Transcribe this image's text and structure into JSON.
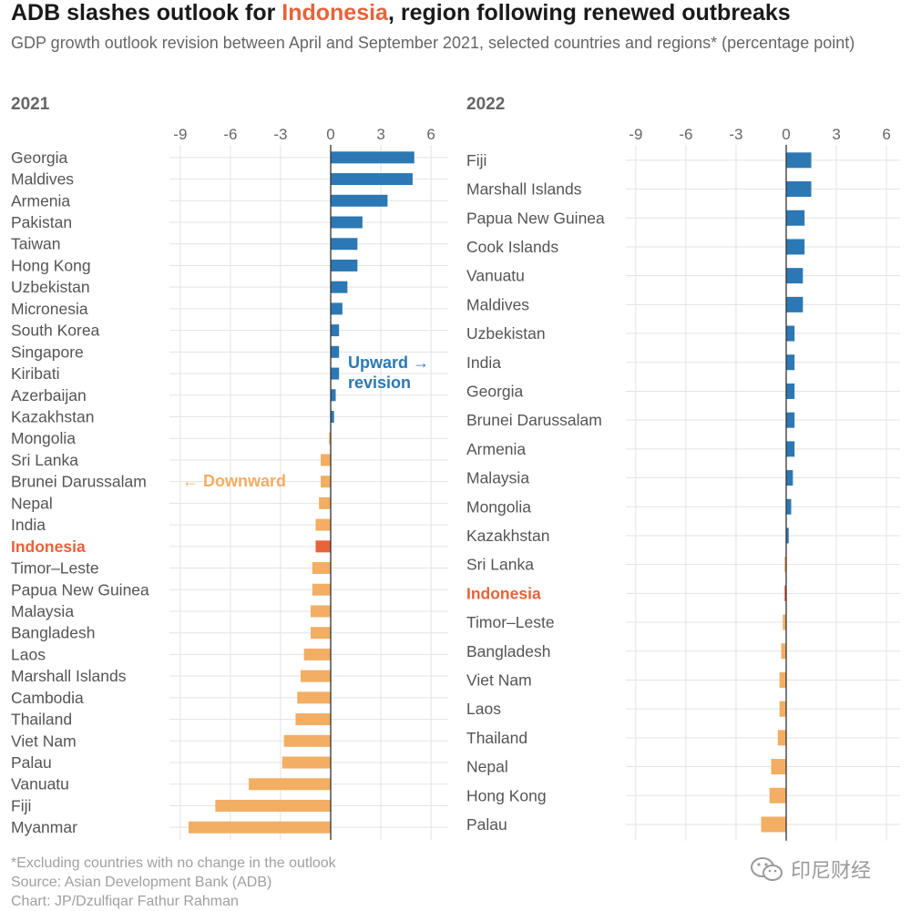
{
  "header": {
    "title_before": "ADB slashes outlook for ",
    "title_highlight": "Indonesia",
    "title_after": ", region following renewed outbreaks",
    "subtitle": "GDP growth outlook revision between April and September 2021, selected countries and regions* (percentage point)"
  },
  "footer": {
    "note": "*Excluding countries with no change in the outlook",
    "source": "Source: Asian Development Bank (ADB)",
    "credit": "Chart: JP/Dzulfiqar Fathur Rahman"
  },
  "watermark": {
    "text": "印尼财经",
    "icon": "wechat-icon"
  },
  "colors": {
    "upward": "#2b78b4",
    "downward": "#f2ae63",
    "highlight": "#e8623a"
  },
  "chart_data": [
    {
      "type": "bar",
      "orientation": "horizontal",
      "title": "2021",
      "xlim": [
        -10.5,
        6.5
      ],
      "ticks": [
        -9,
        -6,
        -3,
        0,
        3,
        6
      ],
      "highlight_category": "Indonesia",
      "annotations": {
        "upward": "Upward →|revision",
        "downward": "← Downward"
      },
      "categories": [
        "Georgia",
        "Maldives",
        "Armenia",
        "Pakistan",
        "Taiwan",
        "Hong Kong",
        "Uzbekistan",
        "Micronesia",
        "South Korea",
        "Singapore",
        "Kiribati",
        "Azerbaijan",
        "Kazakhstan",
        "Mongolia",
        "Sri Lanka",
        "Brunei Darussalam",
        "Nepal",
        "India",
        "Indonesia",
        "Timor–Leste",
        "Papua New Guinea",
        "Malaysia",
        "Bangladesh",
        "Laos",
        "Marshall Islands",
        "Cambodia",
        "Thailand",
        "Viet Nam",
        "Palau",
        "Vanuatu",
        "Fiji",
        "Myanmar"
      ],
      "values": [
        5.0,
        4.9,
        3.4,
        1.9,
        1.6,
        1.6,
        1.0,
        0.7,
        0.5,
        0.5,
        0.5,
        0.3,
        0.2,
        -0.1,
        -0.6,
        -0.6,
        -0.7,
        -0.9,
        -0.9,
        -1.1,
        -1.1,
        -1.2,
        -1.2,
        -1.6,
        -1.8,
        -2.0,
        -2.1,
        -2.8,
        -2.9,
        -4.9,
        -6.9,
        -8.5
      ]
    },
    {
      "type": "bar",
      "orientation": "horizontal",
      "title": "2022",
      "xlim": [
        -10.5,
        6.5
      ],
      "ticks": [
        -9,
        -6,
        -3,
        0,
        3,
        6
      ],
      "highlight_category": "Indonesia",
      "categories": [
        "Fiji",
        "Marshall Islands",
        "Papua New Guinea",
        "Cook Islands",
        "Vanuatu",
        "Maldives",
        "Uzbekistan",
        "India",
        "Georgia",
        "Brunei Darussalam",
        "Armenia",
        "Malaysia",
        "Mongolia",
        "Kazakhstan",
        "Sri Lanka",
        "Indonesia",
        "Timor–Leste",
        "Bangladesh",
        "Viet Nam",
        "Laos",
        "Thailand",
        "Nepal",
        "Hong Kong",
        "Palau"
      ],
      "values": [
        1.5,
        1.5,
        1.1,
        1.1,
        1.0,
        1.0,
        0.5,
        0.5,
        0.5,
        0.5,
        0.5,
        0.4,
        0.3,
        0.15,
        -0.1,
        -0.1,
        -0.2,
        -0.3,
        -0.4,
        -0.4,
        -0.5,
        -0.9,
        -1.0,
        -1.5
      ]
    }
  ]
}
